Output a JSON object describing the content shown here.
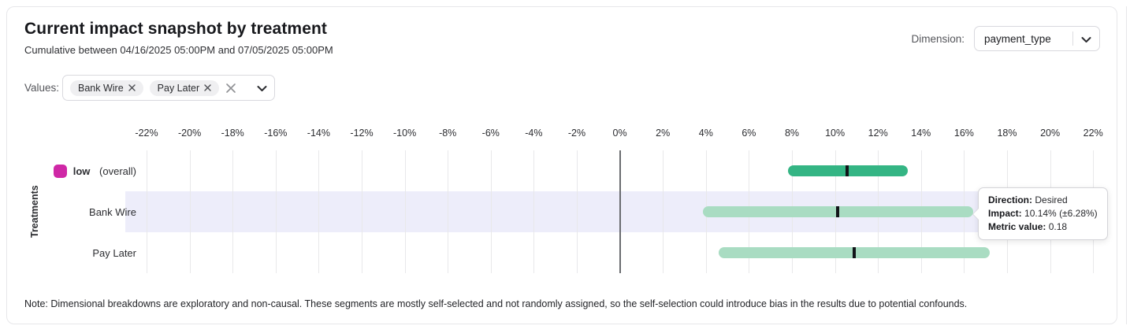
{
  "header": {
    "title": "Current impact snapshot by treatment",
    "subtitle": "Cumulative between 04/16/2025 05:00PM and 07/05/2025 05:00PM",
    "dimension_label": "Dimension:",
    "dimension_value": "payment_type"
  },
  "filters": {
    "label": "Values:",
    "chips": [
      "Bank Wire",
      "Pay Later"
    ]
  },
  "chart_data": {
    "type": "bar",
    "subtype": "horizontal-impact-intervals",
    "title": "Current impact snapshot by treatment",
    "xlabel": "",
    "ylabel": "Treatments",
    "xlim": [
      -23,
      23
    ],
    "grid": true,
    "tick_format": "percent",
    "x_ticks": [
      -22,
      -20,
      -18,
      -16,
      -14,
      -12,
      -10,
      -8,
      -6,
      -4,
      -2,
      0,
      2,
      4,
      6,
      8,
      10,
      12,
      14,
      16,
      18,
      20,
      22
    ],
    "x_tick_labels": [
      "-22%",
      "-20%",
      "-18%",
      "-16%",
      "-14%",
      "-12%",
      "-10%",
      "-8%",
      "-6%",
      "-4%",
      "-2%",
      "0%",
      "2%",
      "4%",
      "6%",
      "8%",
      "10%",
      "12%",
      "14%",
      "16%",
      "18%",
      "20%",
      "22%"
    ],
    "rows": [
      {
        "label": "low",
        "suffix": "(overall)",
        "bold": true,
        "legend_color": "#cf28a6",
        "impact_pct": 10.57,
        "ci_low_pct": 7.8,
        "ci_high_pct": 13.4,
        "bar_color": "#34b584",
        "marker_color": "#121419",
        "highlighted": false
      },
      {
        "label": "Bank Wire",
        "bold": false,
        "legend_color": null,
        "impact_pct": 10.14,
        "ci_low_pct": 3.86,
        "ci_high_pct": 16.42,
        "bar_color": "#a9dcc2",
        "marker_color": "#121419",
        "highlighted": true
      },
      {
        "label": "Pay Later",
        "bold": false,
        "legend_color": null,
        "impact_pct": 10.9,
        "ci_low_pct": 4.6,
        "ci_high_pct": 17.2,
        "bar_color": "#a9dcc2",
        "marker_color": "#121419",
        "highlighted": false
      }
    ],
    "highlight_color": "#ededfa",
    "zero_line_color": "#6a6c70"
  },
  "tooltip": {
    "rows": [
      {
        "label": "Direction:",
        "value": "Desired"
      },
      {
        "label": "Impact:",
        "value": "10.14% (±6.28%)"
      },
      {
        "label": "Metric value:",
        "value": "0.18"
      }
    ]
  },
  "note": "Note: Dimensional breakdowns are exploratory and non-causal. These segments are mostly self-selected and not randomly assigned, so the self-selection could introduce bias in the results due to potential confounds."
}
